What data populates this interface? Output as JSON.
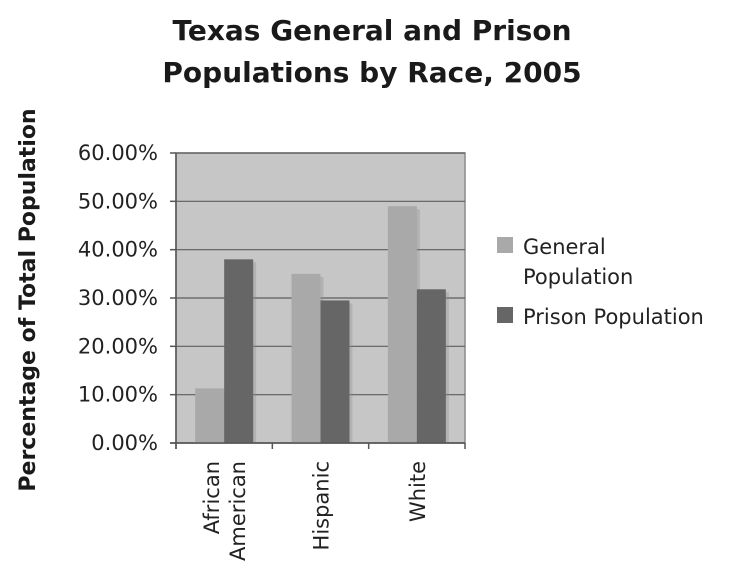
{
  "chart_data": {
    "type": "bar",
    "title_lines": [
      "Texas General and Prison",
      "Populations by Race, 2005"
    ],
    "xlabel": "",
    "ylabel": "Percentage of Total Population",
    "categories": [
      [
        "African",
        "American"
      ],
      [
        "Hispanic"
      ],
      [
        "White"
      ]
    ],
    "series": [
      {
        "name": "General Population",
        "legend_lines": [
          "General",
          "Population"
        ],
        "color": "#a9a9a9",
        "values": [
          11.3,
          35.0,
          49.0
        ]
      },
      {
        "name": "Prison Population",
        "legend_lines": [
          "Prison Population"
        ],
        "color": "#666666",
        "values": [
          38.0,
          29.5,
          31.8
        ]
      }
    ],
    "ylim": [
      0,
      60
    ],
    "yticks": [
      "0.00%",
      "10.00%",
      "20.00%",
      "30.00%",
      "40.00%",
      "50.00%",
      "60.00%"
    ],
    "ytick_values": [
      0,
      10,
      20,
      30,
      40,
      50,
      60
    ],
    "grid": true,
    "legend_position": "right",
    "plot_background": "#c6c6c6"
  }
}
